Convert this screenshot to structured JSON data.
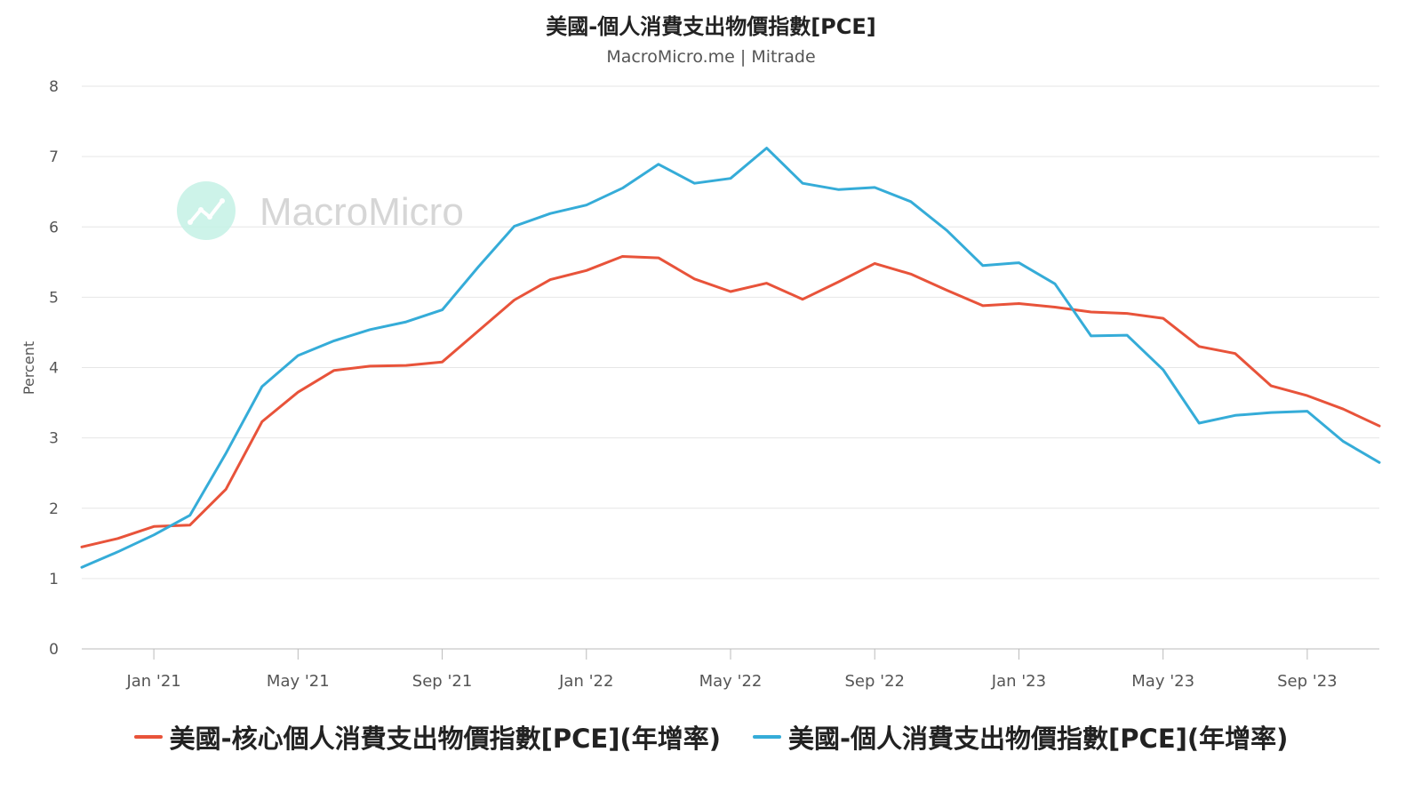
{
  "header": {
    "title": "美國-個人消費支出物價指數[PCE]",
    "subtitle": "MacroMicro.me | Mitrade"
  },
  "watermark": {
    "text": "MacroMicro",
    "icon": "chart-logo-icon"
  },
  "chart_data": {
    "type": "line",
    "title": "美國-個人消費支出物價指數[PCE]",
    "ylabel": "Percent",
    "ylim": [
      0,
      8
    ],
    "yticks": [
      0,
      1,
      2,
      3,
      4,
      5,
      6,
      7,
      8
    ],
    "grid": true,
    "legend_position": "bottom",
    "x": [
      "2020-11",
      "2020-12",
      "2021-01",
      "2021-02",
      "2021-03",
      "2021-04",
      "2021-05",
      "2021-06",
      "2021-07",
      "2021-08",
      "2021-09",
      "2021-10",
      "2021-11",
      "2021-12",
      "2022-01",
      "2022-02",
      "2022-03",
      "2022-04",
      "2022-05",
      "2022-06",
      "2022-07",
      "2022-08",
      "2022-09",
      "2022-10",
      "2022-11",
      "2022-12",
      "2023-01",
      "2023-02",
      "2023-03",
      "2023-04",
      "2023-05",
      "2023-06",
      "2023-07",
      "2023-08",
      "2023-09",
      "2023-10",
      "2023-11"
    ],
    "xtick_labels": [
      {
        "x": "2021-01",
        "label": "Jan '21"
      },
      {
        "x": "2021-05",
        "label": "May '21"
      },
      {
        "x": "2021-09",
        "label": "Sep '21"
      },
      {
        "x": "2022-01",
        "label": "Jan '22"
      },
      {
        "x": "2022-05",
        "label": "May '22"
      },
      {
        "x": "2022-09",
        "label": "Sep '22"
      },
      {
        "x": "2023-01",
        "label": "Jan '23"
      },
      {
        "x": "2023-05",
        "label": "May '23"
      },
      {
        "x": "2023-09",
        "label": "Sep '23"
      }
    ],
    "series": [
      {
        "name": "美國-核心個人消費支出物價指數[PCE](年增率)",
        "color": "#e8533a",
        "values": [
          1.45,
          1.57,
          1.74,
          1.76,
          2.27,
          3.23,
          3.65,
          3.96,
          4.02,
          4.03,
          4.08,
          4.52,
          4.96,
          5.25,
          5.38,
          5.58,
          5.56,
          5.26,
          5.08,
          5.2,
          4.97,
          5.22,
          5.48,
          5.33,
          5.1,
          4.88,
          4.91,
          4.86,
          4.79,
          4.77,
          4.7,
          4.3,
          4.2,
          3.74,
          3.6,
          3.41,
          3.17
        ]
      },
      {
        "name": "美國-個人消費支出物價指數[PCE](年增率)",
        "color": "#35acd8",
        "values": [
          1.16,
          1.38,
          1.62,
          1.9,
          2.78,
          3.73,
          4.17,
          4.38,
          4.54,
          4.65,
          4.82,
          5.43,
          6.01,
          6.19,
          6.31,
          6.55,
          6.89,
          6.62,
          6.69,
          7.12,
          6.62,
          6.53,
          6.56,
          6.36,
          5.95,
          5.45,
          5.49,
          5.19,
          4.45,
          4.46,
          3.97,
          3.21,
          3.32,
          3.36,
          3.38,
          2.95,
          2.65
        ]
      }
    ]
  }
}
